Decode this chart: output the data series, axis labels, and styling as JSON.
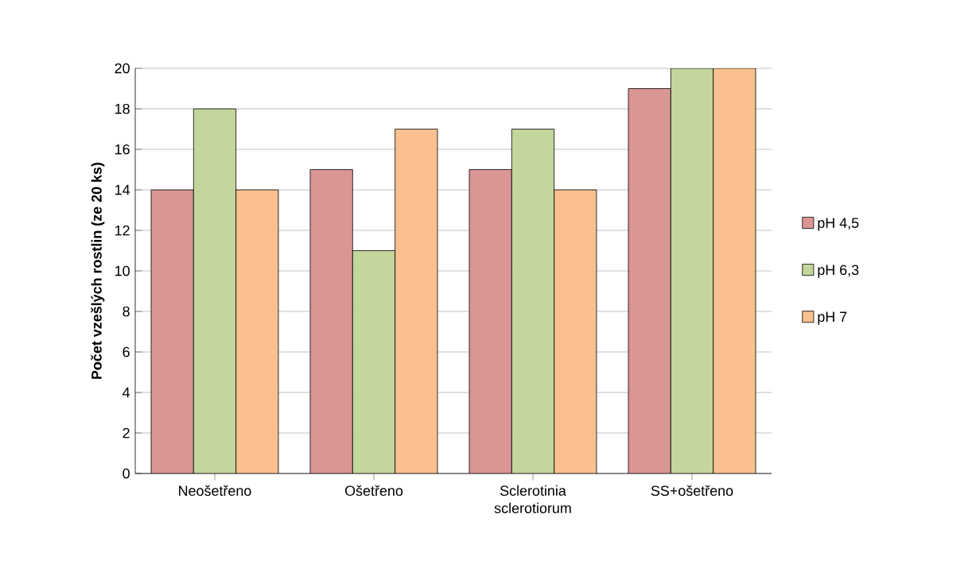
{
  "chart_data": {
    "type": "bar",
    "ylabel": "Počet vzešlých rostlin (ze 20 ks)",
    "categories": [
      "Neošetřeno",
      "Ošetřeno",
      "Sclerotinia sclerotiorum",
      "SS+ošetřeno"
    ],
    "series": [
      {
        "name": "pH 4,5",
        "color": "#d99694",
        "values": [
          14,
          15,
          15,
          19
        ]
      },
      {
        "name": "pH 6,3",
        "color": "#c3d69b",
        "values": [
          18,
          11,
          17,
          20
        ]
      },
      {
        "name": "pH 7",
        "color": "#fac090",
        "values": [
          14,
          17,
          14,
          20
        ]
      }
    ],
    "ylim": [
      0,
      20
    ],
    "yticks": [
      0,
      2,
      4,
      6,
      8,
      10,
      12,
      14,
      16,
      18,
      20
    ],
    "grid": "y",
    "legend": "right"
  }
}
